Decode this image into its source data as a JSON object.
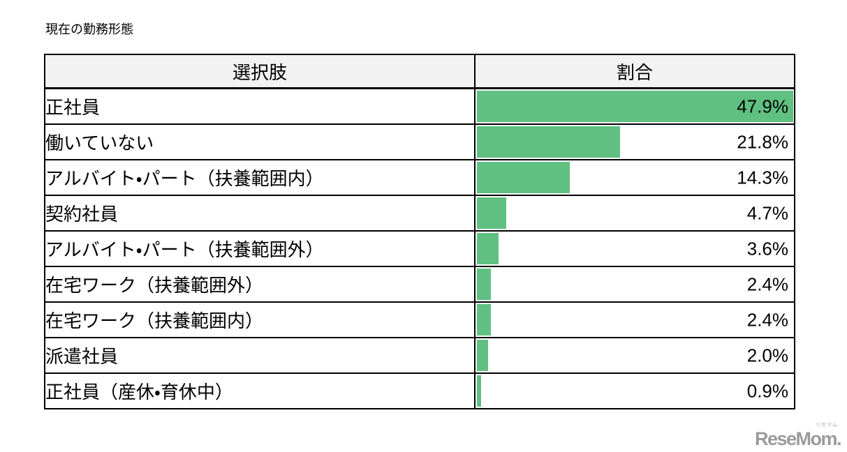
{
  "page": {
    "title": "現在の勤務形態"
  },
  "table": {
    "headers": [
      "選択肢",
      "割合"
    ]
  },
  "chart_data": {
    "type": "bar",
    "orientation": "horizontal",
    "title": "現在の勤務形態",
    "columns": [
      "選択肢",
      "割合"
    ],
    "categories": [
      "正社員",
      "働いていない",
      "アルバイト・パート（扶養範囲内）",
      "契約社員",
      "アルバイト・パート（扶養範囲外）",
      "在宅ワーク（扶養範囲外）",
      "在宅ワーク（扶養範囲内）",
      "派遣社員",
      "正社員（産休・育休中）"
    ],
    "values": [
      47.9,
      21.8,
      14.3,
      4.7,
      3.6,
      2.4,
      2.4,
      2.0,
      0.9
    ],
    "value_labels": [
      "47.9%",
      "21.8%",
      "14.3%",
      "4.7%",
      "3.6%",
      "2.4%",
      "2.4%",
      "2.0%",
      "0.9%"
    ],
    "unit": "%",
    "bar_scale_max": 47.9,
    "legend_position": "none",
    "grid": false
  },
  "colors": {
    "bar_green": "#5FC081",
    "header_bg": "#F2F2F2",
    "border": "#000000",
    "logo_gray": "#9B9B9B"
  },
  "watermark": {
    "text": "ReseMom.",
    "ruby": "リセマム"
  }
}
